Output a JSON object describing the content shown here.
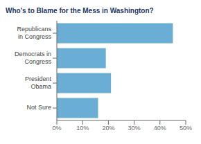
{
  "chart_data": {
    "type": "bar",
    "orientation": "horizontal",
    "title": "Who's to Blame for the Mess in Washington?",
    "categories": [
      "Republicans\nin Congress",
      "Democrats in\nCongress",
      "President\nObama",
      "Not Sure"
    ],
    "values": [
      0.45,
      0.19,
      0.21,
      0.16
    ],
    "color": "#6aaed6",
    "xlim": [
      0,
      0.5
    ],
    "xticks": [
      {
        "value": 0.0,
        "label": "0%"
      },
      {
        "value": 0.1,
        "label": "10%"
      },
      {
        "value": 0.2,
        "label": "20%"
      },
      {
        "value": 0.3,
        "label": "30%"
      },
      {
        "value": 0.4,
        "label": "40%"
      },
      {
        "value": 0.5,
        "label": "50%"
      }
    ],
    "grid": false
  }
}
